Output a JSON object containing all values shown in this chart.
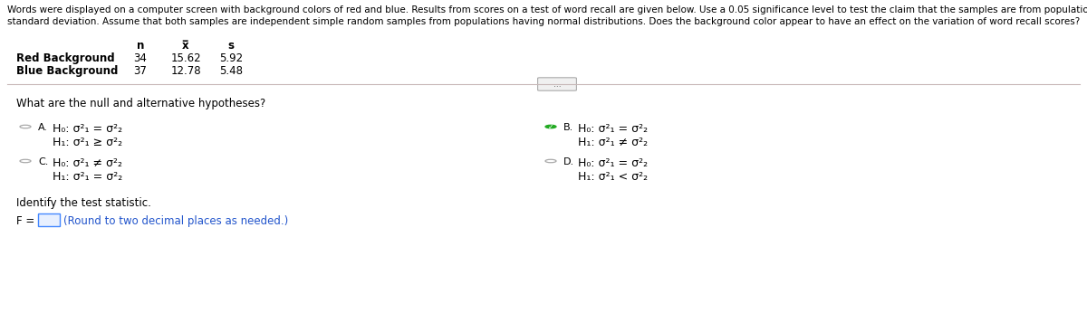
{
  "title_line1": "Words were displayed on a computer screen with background colors of red and blue. Results from scores on a test of word recall are given below. Use a 0.05 significance level to test the claim that the samples are from populations with the same",
  "title_line2": "standard deviation. Assume that both samples are independent simple random samples from populations having normal distributions. Does the background color appear to have an effect on the variation of word recall scores?",
  "col_n": "n",
  "col_x": "x̅",
  "col_s": "s",
  "row1_label": "Red Background",
  "row1_n": "34",
  "row1_x": "15.62",
  "row1_s": "5.92",
  "row2_label": "Blue Background",
  "row2_n": "37",
  "row2_x": "12.78",
  "row2_s": "5.48",
  "question": "What are the null and alternative hypotheses?",
  "opt_A_h0": "H₀: σ²₁ = σ²₂",
  "opt_A_h1": "H₁: σ²₁ ≥ σ²₂",
  "opt_B_h0": "H₀: σ²₁ = σ²₂",
  "opt_B_h1": "H₁: σ²₁ ≠ σ²₂",
  "opt_C_h0": "H₀: σ²₁ ≠ σ²₂",
  "opt_C_h1": "H₁: σ²₁ = σ²₂",
  "opt_D_h0": "H₀: σ²₁ = σ²₂",
  "opt_D_h1": "H₁: σ²₁ < σ²₂",
  "test_stat_label": "Identify the test statistic.",
  "f_label": "F =",
  "f_note": "(Round to two decimal places as needed.)",
  "bg_color": "#ffffff",
  "text_color": "#000000",
  "blue_color": "#2255cc",
  "divider_color": "#c8b8b8",
  "radio_color": "#aaaaaa",
  "check_color": "#22aa22",
  "title_fontsize": 7.5,
  "table_fontsize": 8.5,
  "body_fontsize": 8.5,
  "math_fontsize": 9.0
}
